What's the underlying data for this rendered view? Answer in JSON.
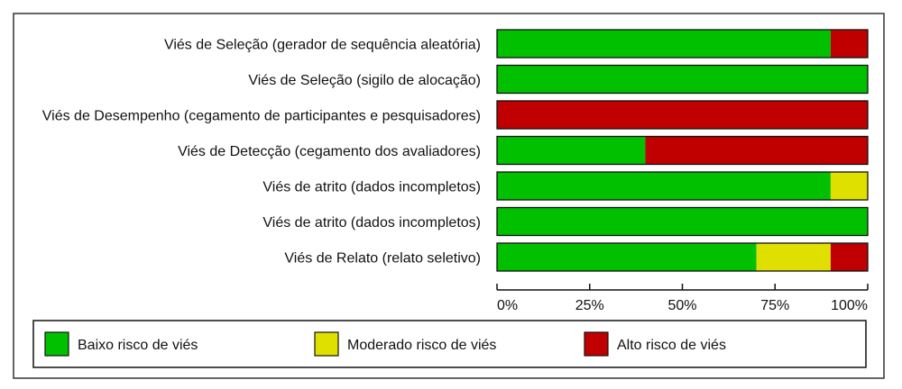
{
  "chart_data": {
    "type": "bar",
    "orientation": "horizontal",
    "stacked": true,
    "categories": [
      "Viés de Seleção (gerador de sequência aleatória)",
      "Viés de Seleção (sigilo de alocação)",
      "Viés de Desempenho (cegamento de participantes e pesquisadores)",
      "Viés de Detecção (cegamento dos avaliadores)",
      "Viés de atrito (dados incompletos)",
      "Viés de atrito (dados incompletos)",
      "Viés de Relato (relato seletivo)"
    ],
    "series": [
      {
        "name": "Baixo risco de viés",
        "color": "#00c000",
        "values": [
          90,
          100,
          0,
          40,
          90,
          100,
          70
        ]
      },
      {
        "name": "Moderado risco de viés",
        "color": "#e0e000",
        "values": [
          0,
          0,
          0,
          0,
          10,
          0,
          20
        ]
      },
      {
        "name": "Alto risco de viés",
        "color": "#c00000",
        "values": [
          10,
          0,
          100,
          60,
          0,
          0,
          10
        ]
      }
    ],
    "xticks": [
      "0%",
      "25%",
      "50%",
      "75%",
      "100%"
    ],
    "xlim": [
      0,
      100
    ],
    "legend_position": "bottom"
  }
}
